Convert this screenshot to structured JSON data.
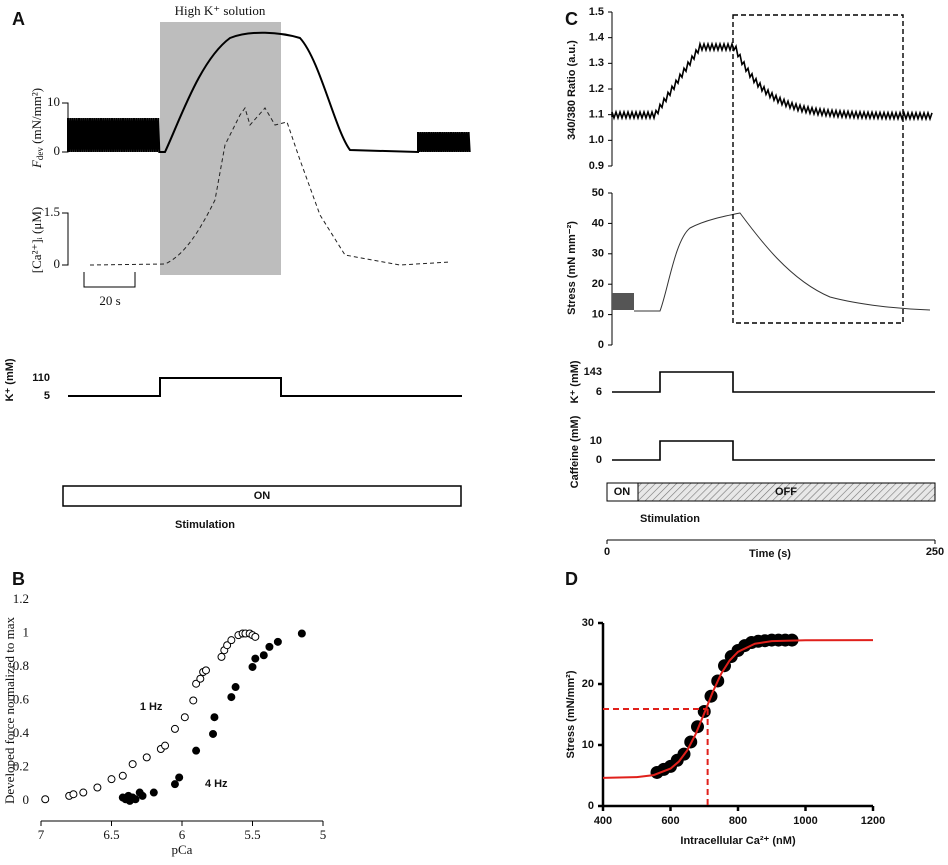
{
  "panel_labels": [
    "A",
    "B",
    "C",
    "D"
  ],
  "panel_a": {
    "solution_label": "High K⁺ solution",
    "force_label": [
      "F",
      "dev",
      " (mN/mm²)"
    ],
    "force_ticks": [
      10,
      0
    ],
    "ca_label": "[Ca²⁺]ᵢ (μM)",
    "ca_ticks": [
      1.5,
      0
    ],
    "scale_bar": "20 s",
    "k_label": "K⁺ (mM)",
    "k_ticks": [
      110,
      5
    ],
    "stim_state": "ON",
    "stim_label": "Stimulation"
  },
  "panel_c": {
    "ratio_label": "340/380 Ratio (a.u.)",
    "ratio_ticks": [
      0.9,
      {
        "value": 1,
        "label": "1.0"
      },
      1.1,
      1.2,
      1.3,
      1.4,
      1.5
    ],
    "stress_label": "Stress (mN mm⁻²)",
    "stress_ticks": [
      0,
      10,
      20,
      30,
      40,
      50
    ],
    "k_label": "K⁺ (mM)",
    "k_ticks": [
      143,
      6
    ],
    "caffeine_label": "Caffeine (mM)",
    "caffeine_ticks": [
      10,
      0
    ],
    "stim_on": "ON",
    "stim_off": "OFF",
    "stim_label": "Stimulation",
    "time_label": "Time (s)",
    "time_ticks": [
      0,
      250
    ]
  },
  "chart_data": [
    {
      "type": "scatter",
      "x_label": "pCa",
      "y_label": "Developed force normalized to max",
      "xlim": [
        7,
        5
      ],
      "xticks": [
        7,
        6.5,
        6,
        5.5,
        5
      ],
      "ylim": [
        -0.12,
        1.2
      ],
      "yticks": [
        0,
        0.2,
        0.4,
        0.6,
        0.8,
        1,
        1.2
      ],
      "series": [
        {
          "name": "1 Hz",
          "color": "#ffffff",
          "x": [
            6.97,
            6.8,
            6.77,
            6.7,
            6.6,
            6.5,
            6.42,
            6.35,
            6.25,
            6.15,
            6.12,
            6.05,
            5.98,
            5.92,
            5.9,
            5.87,
            5.85,
            5.83,
            5.72,
            5.7,
            5.68,
            5.65,
            5.6,
            5.57,
            5.55,
            5.52,
            5.5,
            5.48
          ],
          "values": [
            0.01,
            0.03,
            0.04,
            0.05,
            0.08,
            0.13,
            0.15,
            0.22,
            0.26,
            0.31,
            0.33,
            0.43,
            0.5,
            0.6,
            0.7,
            0.73,
            0.77,
            0.78,
            0.86,
            0.9,
            0.93,
            0.96,
            0.99,
            1,
            1,
            1,
            0.99,
            0.98
          ]
        },
        {
          "name": "4 Hz",
          "color": "#000000",
          "x": [
            6.42,
            6.4,
            6.38,
            6.37,
            6.35,
            6.33,
            6.3,
            6.28,
            6.2,
            6.05,
            6.02,
            5.9,
            5.78,
            5.77,
            5.65,
            5.62,
            5.5,
            5.48,
            5.42,
            5.38,
            5.32,
            5.15
          ],
          "values": [
            0.02,
            0.01,
            0.03,
            0,
            0.02,
            0.01,
            0.05,
            0.03,
            0.05,
            0.1,
            0.14,
            0.3,
            0.4,
            0.5,
            0.62,
            0.68,
            0.8,
            0.85,
            0.87,
            0.92,
            0.95,
            1
          ]
        }
      ]
    },
    {
      "type": "scatter",
      "x_label": "Intracellular Ca²⁺ (nM)",
      "y_label": "Stress (mN/mm²)",
      "xlim": [
        400,
        1200
      ],
      "xticks": [
        400,
        600,
        800,
        1000,
        1200
      ],
      "ylim": [
        0,
        30
      ],
      "yticks": [
        0,
        10,
        20,
        30
      ],
      "series": [
        {
          "color": "#000000",
          "x": [
            560,
            580,
            600,
            620,
            640,
            660,
            680,
            700,
            720,
            740,
            760,
            780,
            800,
            820,
            840,
            860,
            880,
            900,
            920,
            940,
            960
          ],
          "values": [
            5.5,
            6,
            6.5,
            7.5,
            8.5,
            10.5,
            13,
            15.5,
            18,
            20.5,
            23,
            24.5,
            25.5,
            26.3,
            26.8,
            27,
            27.1,
            27.2,
            27.2,
            27.2,
            27.2
          ]
        },
        {
          "color": "#e0201b",
          "line": true,
          "x": [
            400,
            500,
            550,
            600,
            625,
            650,
            675,
            700,
            725,
            750,
            775,
            800,
            850,
            900,
            1000,
            1200
          ],
          "values": [
            4.61,
            4.73,
            5.06,
            6.13,
            7.29,
            9.17,
            11.84,
            15.2,
            18.67,
            21.66,
            23.85,
            25.28,
            26.61,
            27.03,
            27.18,
            27.2
          ]
        }
      ],
      "reference": {
        "x": 710,
        "y": 15.9,
        "color": "#e0201b"
      }
    }
  ]
}
